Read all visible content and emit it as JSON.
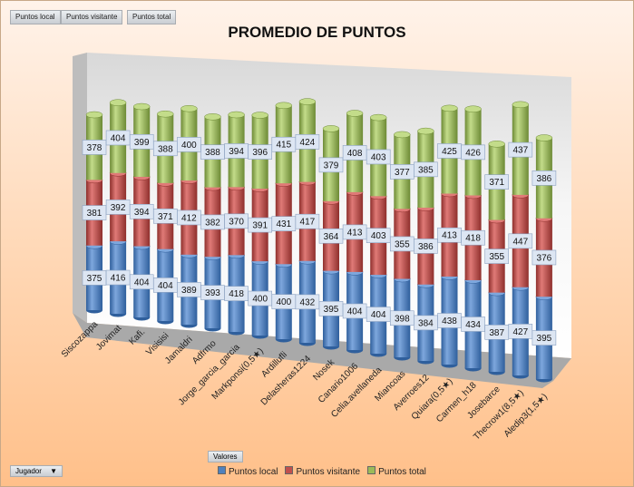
{
  "field_buttons": [
    "Puntos local",
    "Puntos visitante",
    "Puntos total"
  ],
  "values_button": "Valores",
  "axis_button": "Jugador",
  "chart_data": {
    "type": "bar",
    "stacked": true,
    "style": "3d-cylinder",
    "title": "PROMEDIO DE PUNTOS",
    "categories": [
      "Siscozappa",
      "Jovimat",
      "Kafi.",
      "Visisisi",
      "Jamaldri",
      "Adfrmo",
      "Jorge_garcia_garcia",
      "Markponsi(0,5★)",
      "Ardillufli",
      "Delasheras1224",
      "Nosek",
      "Canario1006",
      "Celia.avellaneda",
      "Miancoas",
      "Averroes12",
      "Quiara(0,5★)",
      "Carmen_h18",
      "Josebarce",
      "Thecrow1(8,5★)",
      "Aledip3(1,5★)"
    ],
    "series": [
      {
        "name": "Puntos local",
        "color": "#4f81bd",
        "values": [
          375,
          416,
          404,
          404,
          389,
          393,
          418,
          400,
          400,
          432,
          395,
          404,
          404,
          398,
          384,
          438,
          434,
          387,
          427,
          395
        ]
      },
      {
        "name": "Puntos visitante",
        "color": "#c0504d",
        "values": [
          381,
          392,
          394,
          371,
          412,
          382,
          370,
          391,
          431,
          417,
          364,
          413,
          403,
          355,
          386,
          413,
          418,
          355,
          447,
          376
        ]
      },
      {
        "name": "Puntos total",
        "color": "#9bbb59",
        "values": [
          378,
          404,
          399,
          388,
          400,
          388,
          394,
          396,
          415,
          424,
          379,
          408,
          403,
          377,
          385,
          425,
          426,
          371,
          437,
          386
        ]
      }
    ],
    "legend": "bottom"
  }
}
